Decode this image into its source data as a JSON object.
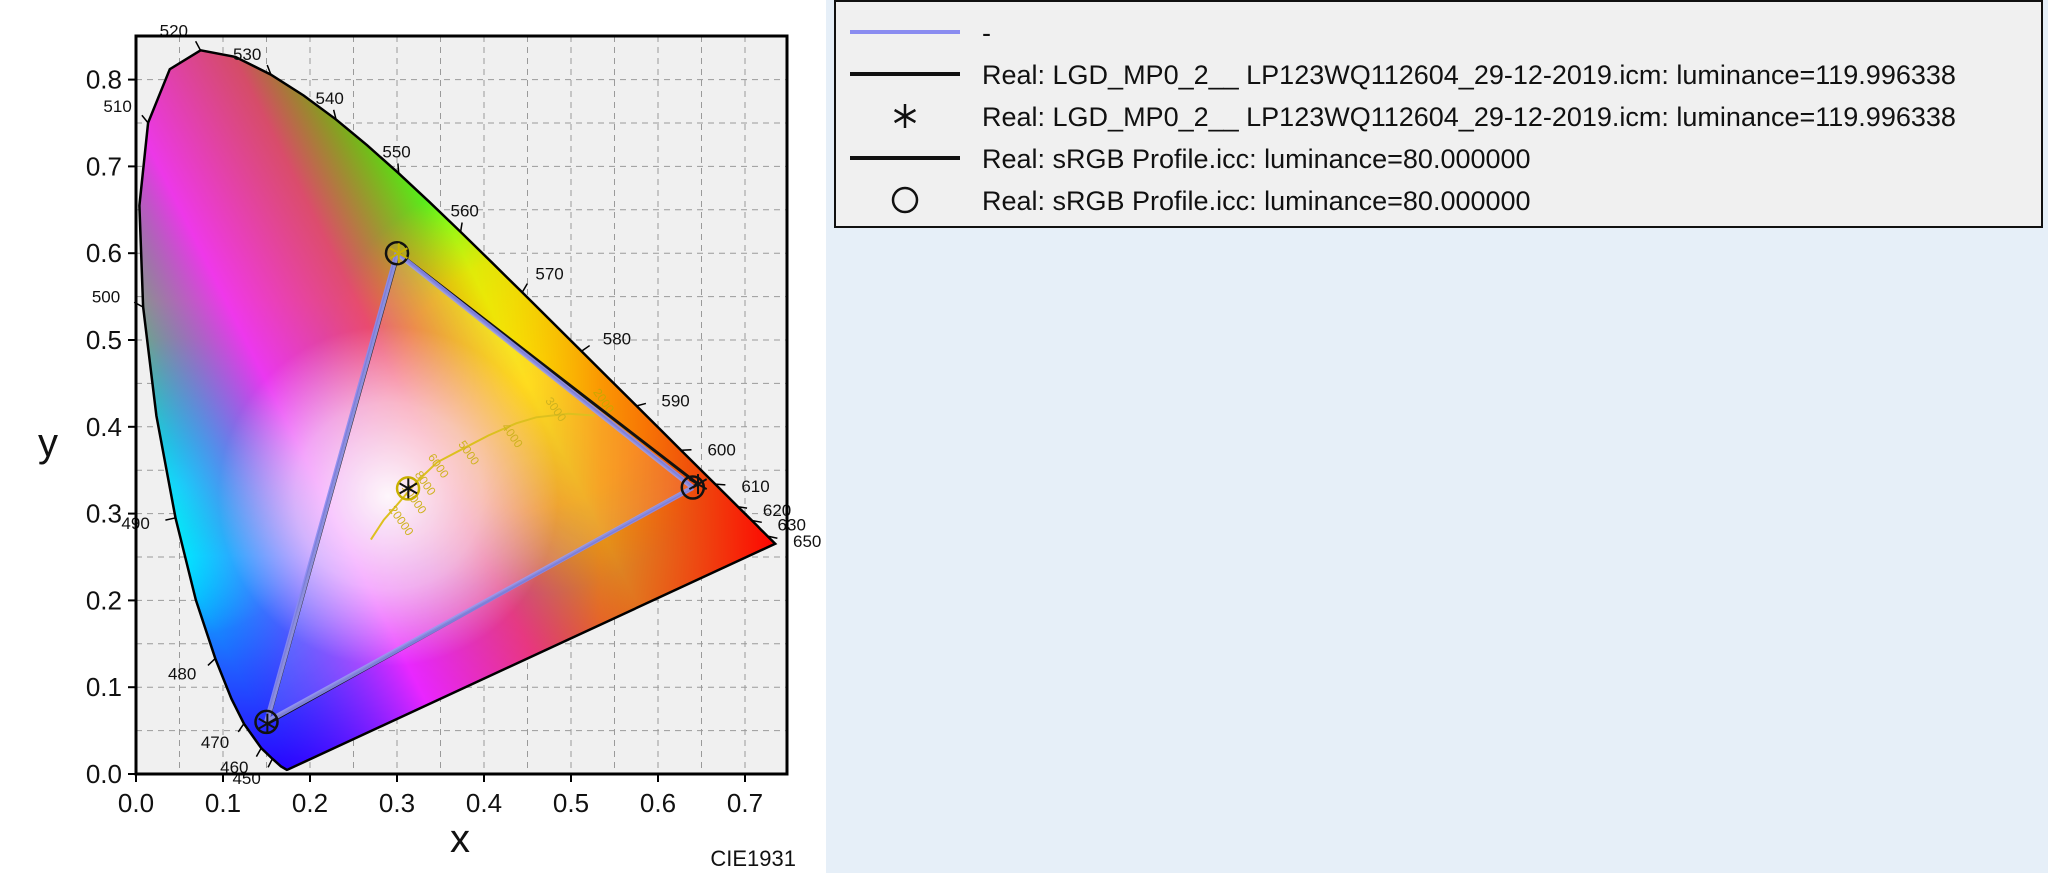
{
  "chart_data": {
    "type": "scatter",
    "title": "",
    "xlabel": "x",
    "ylabel": "y",
    "xlim": [
      0.0,
      0.75
    ],
    "ylim": [
      0.0,
      0.85
    ],
    "x_ticks": [
      "0.0",
      "0.1",
      "0.2",
      "0.3",
      "0.4",
      "0.5",
      "0.6",
      "0.7"
    ],
    "y_ticks": [
      "0.0",
      "0.1",
      "0.2",
      "0.3",
      "0.4",
      "0.5",
      "0.6",
      "0.7",
      "0.8"
    ],
    "grid": true,
    "diagram_label": "CIE1931",
    "spectral_locus_labels": [
      {
        "nm": "450",
        "x": 0.157,
        "y": 0.018
      },
      {
        "nm": "460",
        "x": 0.144,
        "y": 0.03
      },
      {
        "nm": "470",
        "x": 0.124,
        "y": 0.058
      },
      {
        "nm": "480",
        "x": 0.091,
        "y": 0.133
      },
      {
        "nm": "490",
        "x": 0.045,
        "y": 0.295
      },
      {
        "nm": "500",
        "x": 0.008,
        "y": 0.538
      },
      {
        "nm": "510",
        "x": 0.014,
        "y": 0.75
      },
      {
        "nm": "520",
        "x": 0.074,
        "y": 0.834
      },
      {
        "nm": "530",
        "x": 0.155,
        "y": 0.806
      },
      {
        "nm": "540",
        "x": 0.23,
        "y": 0.754
      },
      {
        "nm": "550",
        "x": 0.302,
        "y": 0.692
      },
      {
        "nm": "560",
        "x": 0.373,
        "y": 0.624
      },
      {
        "nm": "570",
        "x": 0.444,
        "y": 0.555
      },
      {
        "nm": "580",
        "x": 0.512,
        "y": 0.487
      },
      {
        "nm": "590",
        "x": 0.575,
        "y": 0.424
      },
      {
        "nm": "600",
        "x": 0.627,
        "y": 0.373
      },
      {
        "nm": "610",
        "x": 0.666,
        "y": 0.334
      },
      {
        "nm": "620",
        "x": 0.691,
        "y": 0.308
      },
      {
        "nm": "630",
        "x": 0.708,
        "y": 0.292
      },
      {
        "nm": "650",
        "x": 0.726,
        "y": 0.274
      }
    ],
    "planckian_labels": [
      "2000",
      "3000",
      "4000",
      "5000",
      "6000",
      "8000",
      "10000",
      "20000"
    ],
    "series": [
      {
        "name": "-",
        "style": "line",
        "color": "#8a8cf0",
        "x": [
          0.64,
          0.3,
          0.15,
          0.64
        ],
        "y": [
          0.33,
          0.6,
          0.06,
          0.33
        ]
      },
      {
        "name": "Real: LGD_MP0_2__ LP123WQ112604_29-12-2019.icm: luminance=119.996338",
        "style": "line",
        "color": "#111111",
        "x": [
          0.646,
          0.302,
          0.151,
          0.646
        ],
        "y": [
          0.334,
          0.6,
          0.058,
          0.334
        ]
      },
      {
        "name": "Real: LGD_MP0_2__ LP123WQ112604_29-12-2019.icm: luminance=119.996338",
        "style": "marker",
        "marker": "asterisk",
        "color": "#111111",
        "x": [
          0.646,
          0.313,
          0.151,
          0.302
        ],
        "y": [
          0.334,
          0.329,
          0.058,
          0.6
        ]
      },
      {
        "name": "Real: sRGB Profile.icc: luminance=80.000000",
        "style": "line",
        "color": "#111111",
        "x": [
          0.64,
          0.3,
          0.15,
          0.64
        ],
        "y": [
          0.33,
          0.6,
          0.06,
          0.33
        ]
      },
      {
        "name": "Real: sRGB Profile.icc: luminance=80.000000",
        "style": "marker",
        "marker": "circle",
        "color": "#111111",
        "x": [
          0.64,
          0.3,
          0.15,
          0.3127
        ],
        "y": [
          0.33,
          0.6,
          0.06,
          0.329
        ]
      }
    ],
    "legend_position": "right-top"
  },
  "legend": {
    "items": [
      {
        "label": "-",
        "symbol": "line",
        "color": "#8a8cf0"
      },
      {
        "label": "Real: LGD_MP0_2__  LP123WQ112604_29-12-2019.icm: luminance=119.996338",
        "symbol": "line",
        "color": "#111111"
      },
      {
        "label": "Real: LGD_MP0_2__  LP123WQ112604_29-12-2019.icm: luminance=119.996338",
        "symbol": "asterisk",
        "color": "#111111"
      },
      {
        "label": "Real: sRGB Profile.icc: luminance=80.000000",
        "symbol": "line",
        "color": "#111111"
      },
      {
        "label": "Real: sRGB Profile.icc: luminance=80.000000",
        "symbol": "circle",
        "color": "#111111"
      }
    ]
  }
}
